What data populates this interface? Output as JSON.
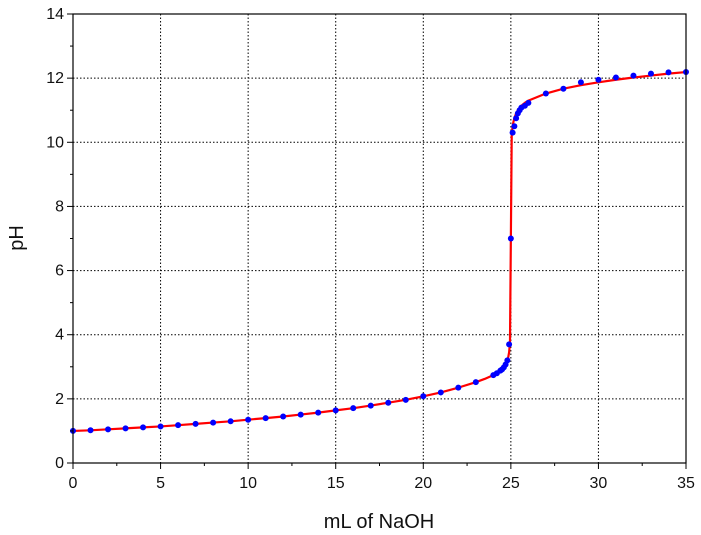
{
  "chart_data": {
    "type": "line",
    "xlabel": "mL of NaOH",
    "ylabel": "pH",
    "xlim": [
      0,
      35
    ],
    "ylim": [
      0,
      14
    ],
    "x_ticks": [
      0,
      5,
      10,
      15,
      20,
      25,
      30,
      35
    ],
    "y_ticks": [
      0,
      2,
      4,
      6,
      8,
      10,
      12,
      14
    ],
    "grid": true,
    "colors": {
      "fit_line": "#ff0000",
      "points": "#0000ff",
      "grid": "#000000",
      "axes": "#000000"
    },
    "series": [
      {
        "kind": "curve",
        "x": [
          0,
          1,
          2,
          3,
          4,
          5,
          6,
          7,
          8,
          9,
          10,
          11,
          12,
          13,
          14,
          15,
          16,
          17,
          18,
          19,
          20,
          21,
          22,
          23,
          23.5,
          24,
          24.2,
          24.4,
          24.5,
          24.6,
          24.7,
          24.8,
          24.85,
          24.9,
          24.95,
          25,
          25.05,
          25.1,
          25.15,
          25.2,
          25.3,
          25.4,
          25.5,
          25.6,
          25.8,
          26,
          27,
          28,
          29,
          30,
          31,
          32,
          33,
          34,
          35
        ],
        "y": [
          1.0,
          1.02,
          1.05,
          1.08,
          1.11,
          1.14,
          1.18,
          1.22,
          1.26,
          1.3,
          1.35,
          1.4,
          1.45,
          1.51,
          1.57,
          1.64,
          1.71,
          1.79,
          1.88,
          1.97,
          2.08,
          2.2,
          2.35,
          2.52,
          2.62,
          2.74,
          2.8,
          2.88,
          2.92,
          2.98,
          3.07,
          3.2,
          3.3,
          3.45,
          3.75,
          7.0,
          10.25,
          10.5,
          10.64,
          10.75,
          10.9,
          11.0,
          11.08,
          11.14,
          11.23,
          11.3,
          11.52,
          11.67,
          11.78,
          11.87,
          11.95,
          12.02,
          12.08,
          12.14,
          12.19
        ]
      },
      {
        "kind": "points",
        "x": [
          0,
          1,
          2,
          3,
          4,
          5,
          6,
          7,
          8,
          9,
          10,
          11,
          12,
          13,
          14,
          15,
          16,
          17,
          18,
          19,
          20,
          21,
          22,
          23,
          24,
          24.2,
          24.4,
          24.5,
          24.6,
          24.7,
          24.8,
          24.9,
          25,
          25.1,
          25.2,
          25.3,
          25.4,
          25.5,
          25.6,
          25.8,
          26,
          27,
          28,
          29,
          30,
          31,
          32,
          33,
          34,
          35
        ],
        "y": [
          1.0,
          1.02,
          1.05,
          1.08,
          1.11,
          1.14,
          1.18,
          1.22,
          1.26,
          1.3,
          1.35,
          1.4,
          1.45,
          1.51,
          1.57,
          1.64,
          1.71,
          1.79,
          1.88,
          1.97,
          2.08,
          2.2,
          2.35,
          2.52,
          2.74,
          2.8,
          2.88,
          2.92,
          2.98,
          3.07,
          3.2,
          3.7,
          7.0,
          10.3,
          10.5,
          10.75,
          10.9,
          11.0,
          11.08,
          11.14,
          11.23,
          11.52,
          11.67,
          11.87,
          11.95,
          12.02,
          12.08,
          12.14,
          12.18,
          12.19
        ]
      }
    ]
  }
}
